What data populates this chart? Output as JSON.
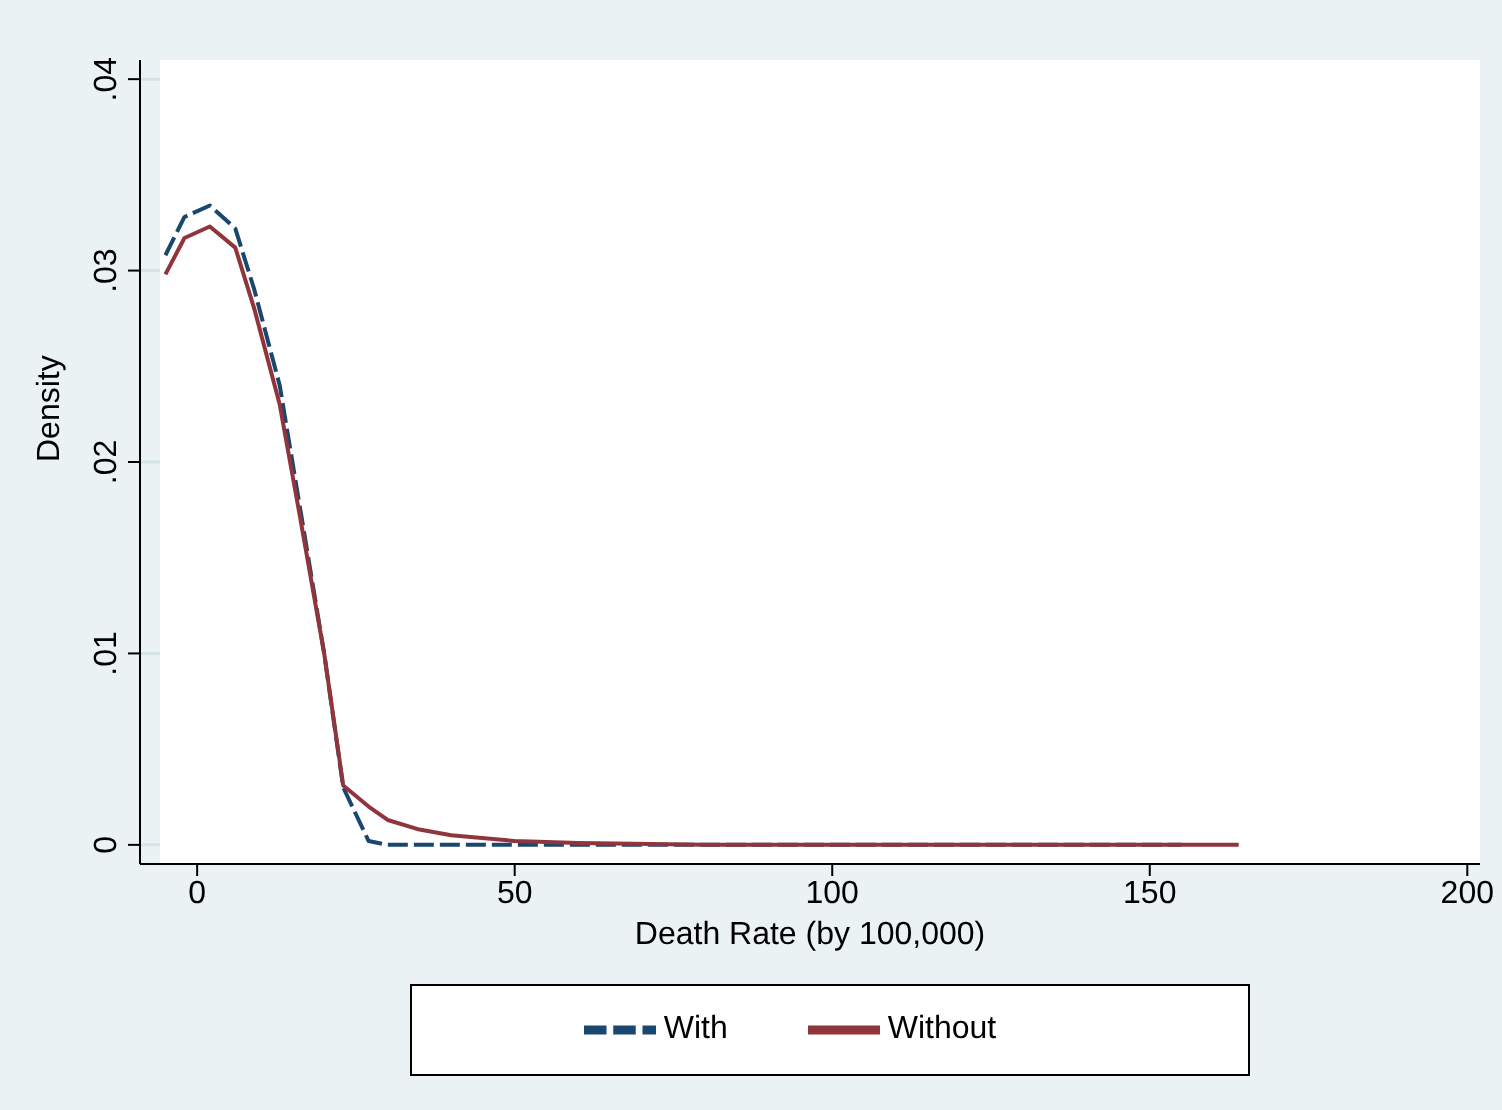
{
  "chart_data": {
    "type": "line",
    "xlabel": "Death Rate (by 100,000)",
    "ylabel": "Density",
    "xlim": [
      -9,
      202
    ],
    "xticks": [
      0,
      50,
      100,
      150,
      200
    ],
    "ylim": [
      -0.001,
      0.041
    ],
    "yticks": [
      {
        "value": 0,
        "label": "0"
      },
      {
        "value": 0.01,
        "label": ".01"
      },
      {
        "value": 0.02,
        "label": ".02"
      },
      {
        "value": 0.03,
        "label": ".03"
      },
      {
        "value": 0.04,
        "label": ".04"
      }
    ],
    "grid": "y",
    "legend": "bottom",
    "marker": "none",
    "series": [
      {
        "name": "With",
        "color": "#1a476f",
        "line_style": "dashed",
        "x": [
          -5,
          -2,
          2,
          6,
          9,
          13,
          16,
          20,
          23,
          27,
          30,
          40,
          60,
          100,
          155
        ],
        "values": [
          0.0308,
          0.0328,
          0.0334,
          0.0322,
          0.029,
          0.024,
          0.018,
          0.01,
          0.003,
          0.0002,
          0,
          0,
          0,
          0,
          0
        ]
      },
      {
        "name": "Without",
        "color": "#90353b",
        "line_style": "solid",
        "x": [
          -5,
          -2,
          2,
          6,
          9,
          13,
          16,
          20,
          23,
          27,
          30,
          35,
          40,
          50,
          60,
          80,
          100,
          164
        ],
        "values": [
          0.0298,
          0.0317,
          0.0323,
          0.0312,
          0.028,
          0.023,
          0.0175,
          0.01,
          0.0031,
          0.002,
          0.0013,
          0.0008,
          0.0005,
          0.0002,
          0.0001,
          0,
          0,
          0
        ]
      }
    ]
  }
}
